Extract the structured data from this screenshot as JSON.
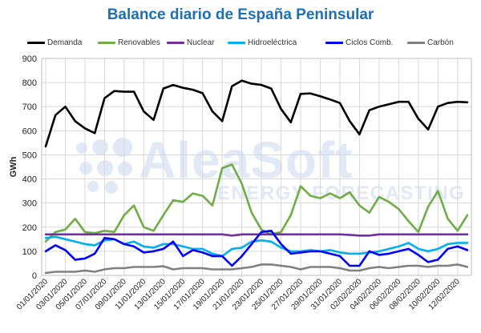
{
  "chart_data": {
    "type": "line",
    "title": "Balance diario de España Peninsular",
    "ylabel": "GWh",
    "xlabel": "",
    "ylim": [
      0,
      900
    ],
    "yticks": [
      0,
      100,
      200,
      300,
      400,
      500,
      600,
      700,
      800,
      900
    ],
    "grid": true,
    "legend_position": "top",
    "x": [
      "01/01/2020",
      "02/01/2020",
      "03/01/2020",
      "04/01/2020",
      "05/01/2020",
      "06/01/2020",
      "07/01/2020",
      "08/01/2020",
      "09/01/2020",
      "10/01/2020",
      "11/01/2020",
      "12/01/2020",
      "13/01/2020",
      "14/01/2020",
      "15/01/2020",
      "16/01/2020",
      "17/01/2020",
      "18/01/2020",
      "19/01/2020",
      "20/01/2020",
      "21/01/2020",
      "22/01/2020",
      "23/01/2020",
      "24/01/2020",
      "25/01/2020",
      "26/01/2020",
      "27/01/2020",
      "28/01/2020",
      "29/01/2020",
      "30/01/2020",
      "31/01/2020",
      "01/02/2020",
      "02/02/2020",
      "03/02/2020",
      "04/02/2020",
      "05/02/2020",
      "06/02/2020",
      "07/02/2020",
      "08/02/2020",
      "09/02/2020",
      "10/02/2020",
      "11/02/2020",
      "12/02/2020",
      "13/02/2020"
    ],
    "xtick_labels": [
      "01/01/2020",
      "03/01/2020",
      "05/01/2020",
      "07/01/2020",
      "09/01/2020",
      "11/01/2020",
      "13/01/2020",
      "15/01/2020",
      "17/01/2020",
      "19/01/2020",
      "21/01/2020",
      "23/01/2020",
      "25/01/2020",
      "27/01/2020",
      "29/01/2020",
      "31/01/2020",
      "02/02/2020",
      "04/02/2020",
      "06/02/2020",
      "08/02/2020",
      "10/02/2020",
      "12/02/2020"
    ],
    "series": [
      {
        "name": "Demanda",
        "color": "#000000",
        "values": [
          535,
          665,
          700,
          640,
          610,
          590,
          735,
          765,
          762,
          762,
          680,
          645,
          775,
          790,
          778,
          770,
          756,
          680,
          640,
          785,
          808,
          795,
          790,
          775,
          690,
          635,
          753,
          755,
          743,
          730,
          715,
          640,
          585,
          685,
          700,
          710,
          720,
          720,
          650,
          605,
          700,
          715,
          720,
          718
        ]
      },
      {
        "name": "Renovables",
        "color": "#70ad47",
        "values": [
          140,
          180,
          190,
          235,
          180,
          175,
          185,
          180,
          250,
          290,
          200,
          185,
          250,
          312,
          305,
          340,
          330,
          290,
          445,
          460,
          380,
          260,
          190,
          170,
          180,
          250,
          370,
          330,
          320,
          340,
          320,
          345,
          290,
          260,
          325,
          305,
          275,
          225,
          180,
          285,
          350,
          235,
          185,
          250
        ]
      },
      {
        "name": "Nuclear",
        "color": "#7030a0",
        "values": [
          170,
          170,
          170,
          170,
          170,
          170,
          170,
          170,
          170,
          170,
          170,
          170,
          170,
          170,
          170,
          170,
          170,
          170,
          170,
          165,
          170,
          170,
          170,
          170,
          170,
          170,
          170,
          170,
          170,
          170,
          170,
          168,
          165,
          165,
          170,
          170,
          170,
          170,
          170,
          170,
          170,
          170,
          170,
          170
        ]
      },
      {
        "name": "Hidroeléctrica",
        "color": "#00b0f0",
        "values": [
          155,
          160,
          150,
          140,
          130,
          125,
          145,
          150,
          130,
          140,
          120,
          115,
          130,
          130,
          120,
          110,
          110,
          90,
          80,
          110,
          115,
          140,
          145,
          140,
          115,
          100,
          100,
          105,
          100,
          105,
          95,
          90,
          90,
          95,
          100,
          110,
          120,
          135,
          110,
          100,
          110,
          130,
          135,
          135
        ]
      },
      {
        "name": "Ciclos Comb.",
        "color": "#0000ff",
        "values": [
          100,
          125,
          105,
          65,
          70,
          90,
          155,
          150,
          130,
          120,
          95,
          100,
          110,
          140,
          80,
          105,
          95,
          80,
          80,
          40,
          80,
          130,
          180,
          185,
          130,
          90,
          95,
          100,
          100,
          90,
          80,
          40,
          40,
          100,
          85,
          90,
          100,
          110,
          85,
          55,
          65,
          110,
          120,
          105
        ]
      },
      {
        "name": "Carbón",
        "color": "#808080",
        "values": [
          10,
          15,
          15,
          15,
          20,
          15,
          25,
          30,
          30,
          35,
          35,
          35,
          38,
          25,
          30,
          30,
          30,
          25,
          25,
          25,
          30,
          35,
          45,
          45,
          40,
          35,
          25,
          35,
          35,
          35,
          30,
          20,
          20,
          30,
          35,
          30,
          35,
          40,
          40,
          35,
          40,
          40,
          45,
          35
        ]
      }
    ]
  },
  "watermark": {
    "brand": "AleaSoft",
    "tagline": "ENERGY FORECASTING"
  }
}
